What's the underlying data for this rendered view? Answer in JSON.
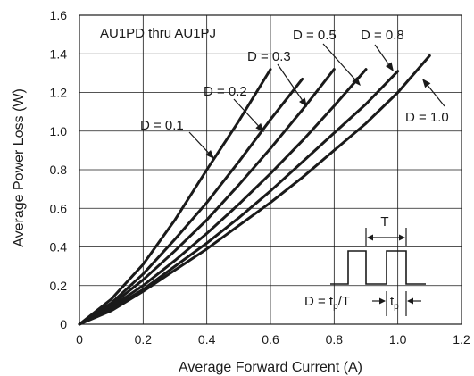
{
  "chart_data": {
    "type": "line",
    "title": "AU1PD thru AU1PJ",
    "xlabel": "Average Forward Current (A)",
    "ylabel": "Average Power Loss (W)",
    "xlim": [
      0,
      1.2
    ],
    "ylim": [
      0,
      1.6
    ],
    "x_ticks": [
      "0",
      "0.2",
      "0.4",
      "0.6",
      "0.8",
      "1.0",
      "1.2"
    ],
    "y_ticks": [
      "0",
      "0.2",
      "0.4",
      "0.6",
      "0.8",
      "1.0",
      "1.2",
      "1.4",
      "1.6"
    ],
    "grid": true,
    "series": [
      {
        "name": "D = 0.1",
        "x": [
          0,
          0.1,
          0.2,
          0.3,
          0.4,
          0.5,
          0.6
        ],
        "y": [
          0,
          0.13,
          0.31,
          0.54,
          0.8,
          1.05,
          1.32
        ]
      },
      {
        "name": "D = 0.2",
        "x": [
          0,
          0.1,
          0.2,
          0.3,
          0.4,
          0.5,
          0.6,
          0.7
        ],
        "y": [
          0,
          0.11,
          0.26,
          0.44,
          0.63,
          0.84,
          1.06,
          1.27
        ]
      },
      {
        "name": "D = 0.3",
        "x": [
          0,
          0.1,
          0.2,
          0.3,
          0.4,
          0.5,
          0.6,
          0.7,
          0.8
        ],
        "y": [
          0,
          0.1,
          0.23,
          0.38,
          0.54,
          0.72,
          0.91,
          1.11,
          1.32
        ]
      },
      {
        "name": "D = 0.5",
        "x": [
          0,
          0.1,
          0.2,
          0.3,
          0.4,
          0.5,
          0.6,
          0.7,
          0.8,
          0.9
        ],
        "y": [
          0,
          0.09,
          0.2,
          0.33,
          0.47,
          0.62,
          0.78,
          0.95,
          1.13,
          1.32
        ]
      },
      {
        "name": "D = 0.8",
        "x": [
          0,
          0.1,
          0.2,
          0.3,
          0.4,
          0.5,
          0.6,
          0.7,
          0.8,
          0.9,
          1.0
        ],
        "y": [
          0,
          0.08,
          0.18,
          0.3,
          0.42,
          0.55,
          0.69,
          0.84,
          0.99,
          1.14,
          1.31
        ]
      },
      {
        "name": "D = 1.0",
        "x": [
          0,
          0.1,
          0.2,
          0.3,
          0.4,
          0.5,
          0.6,
          0.7,
          0.8,
          0.9,
          1.0,
          1.1
        ],
        "y": [
          0,
          0.07,
          0.17,
          0.28,
          0.39,
          0.51,
          0.63,
          0.76,
          0.9,
          1.04,
          1.2,
          1.39
        ]
      }
    ],
    "inset": {
      "period_label": "T",
      "formula": {
        "main": "D = t",
        "sub": "p",
        "tail": "/T"
      },
      "tp_label": {
        "main": "t",
        "sub": "p"
      }
    }
  }
}
